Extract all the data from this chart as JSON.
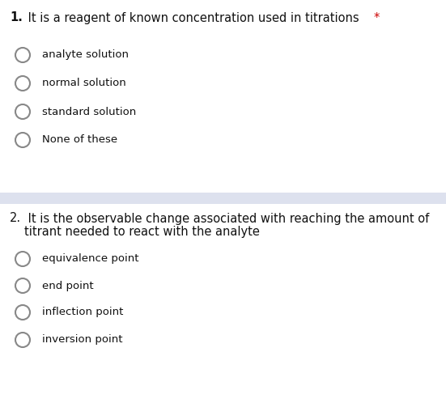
{
  "background_color": "#ffffff",
  "separator_color": "#dde1ee",
  "q1_number": "1.",
  "q1_text": " It is a reagent of known concentration used in titrations ",
  "q1_asterisk": "*",
  "q1_options": [
    "analyte solution",
    "normal solution",
    "standard solution",
    "None of these"
  ],
  "q2_number": "2.",
  "q2_text_line1": "2. It is the observable change associated with reaching the amount of",
  "q2_text_line2": "titrant needed to react with the analyte",
  "q2_options": [
    "equivalence point",
    "end point",
    "inflection point",
    "inversion point"
  ],
  "circle_color": "#888888",
  "circle_lw": 1.5,
  "option_font_size": 9.5,
  "question_font_size": 10.5,
  "text_color": "#111111",
  "asterisk_color": "#cc0000",
  "fig_width": 5.51,
  "fig_height": 5.19,
  "dpi": 100
}
